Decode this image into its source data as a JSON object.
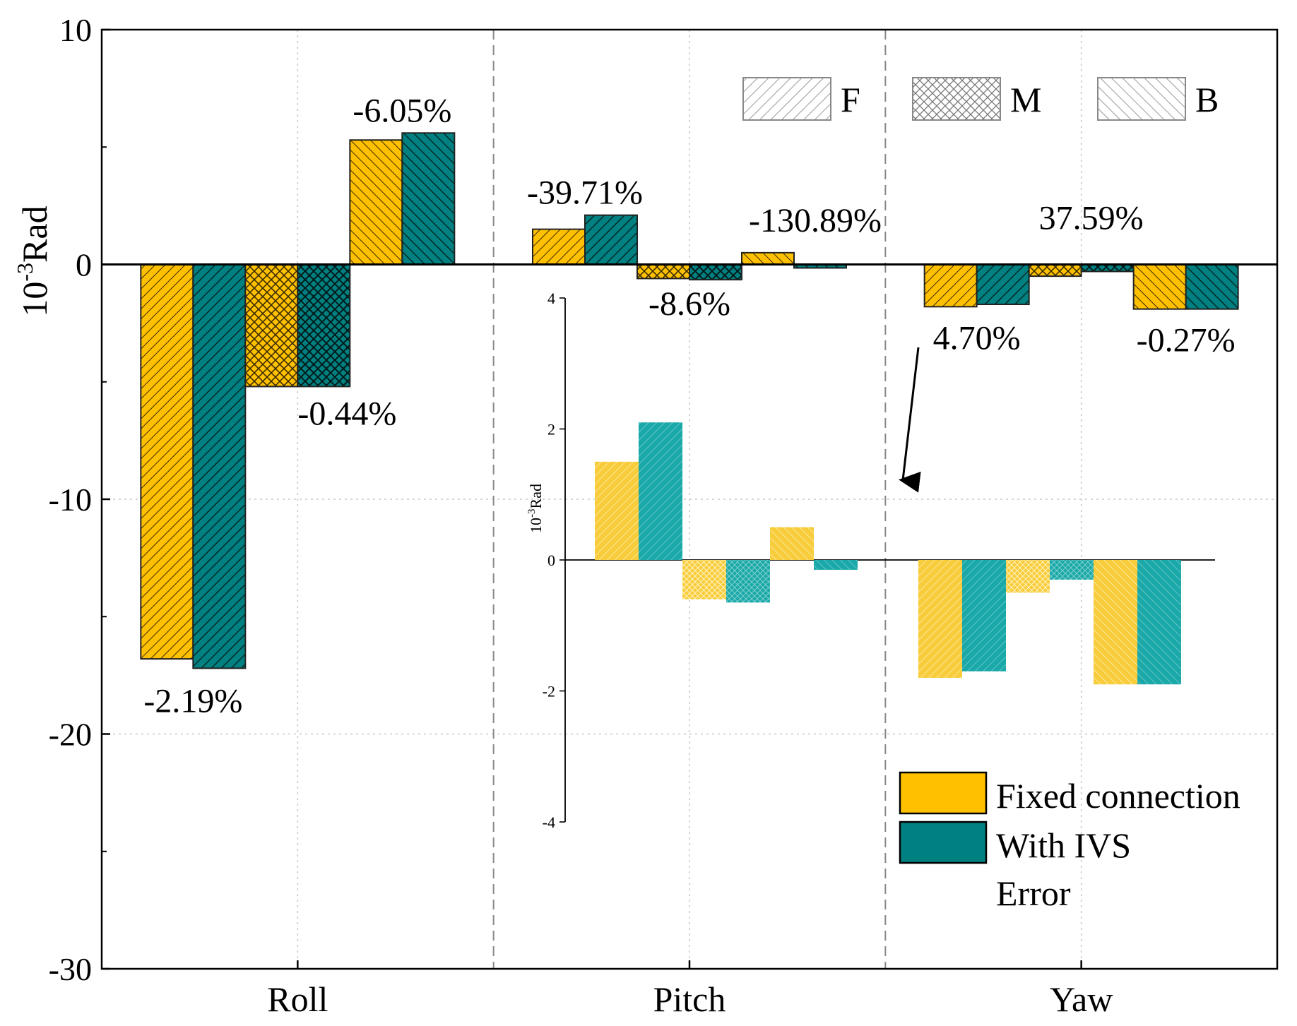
{
  "chart_data": {
    "type": "bar",
    "ylabel": "10-3Rad",
    "ylabel_base": "10",
    "ylabel_exp": "-3",
    "ylabel_unit": "Rad",
    "ylim": [
      -30,
      10
    ],
    "yticks": [
      "10",
      "0",
      "-10",
      "-20",
      "-30"
    ],
    "yticks_values": [
      10,
      0,
      -10,
      -20,
      -30
    ],
    "categories": [
      "Roll",
      "Pitch",
      "Yaw"
    ],
    "positions": [
      "F",
      "M",
      "B"
    ],
    "series": [
      {
        "name": "Fixed connection",
        "color": "#FFC000",
        "values": [
          [
            -16.8,
            -5.2,
            5.3
          ],
          [
            1.5,
            -0.6,
            0.5
          ],
          [
            -1.8,
            -0.5,
            -1.9
          ]
        ]
      },
      {
        "name": "With IVS",
        "color": "#008080",
        "values": [
          [
            -17.2,
            -5.2,
            5.6
          ],
          [
            2.1,
            -0.65,
            -0.15
          ],
          [
            -1.7,
            -0.3,
            -1.9
          ]
        ]
      }
    ],
    "errors": [
      [
        "-2.19%",
        "-0.44%",
        "-6.05%"
      ],
      [
        "-39.71%",
        "-8.6%",
        "-130.89%"
      ],
      [
        "4.70%",
        "37.59%",
        "-0.27%"
      ]
    ],
    "pattern_legend": [
      "F",
      "M",
      "B"
    ],
    "legend": {
      "fixed_label": "Fixed connection",
      "ivs_label": "With IVS",
      "error_label": "Error",
      "placement": "bottom-right"
    },
    "inset": {
      "ylim": [
        -4,
        4
      ],
      "yticks": [
        "4",
        "2",
        "0",
        "-2",
        "-4"
      ],
      "yticks_values": [
        4,
        2,
        0,
        -2,
        -4
      ],
      "ylabel_base": "10",
      "ylabel_exp": "-3",
      "ylabel_unit": "Rad"
    }
  }
}
